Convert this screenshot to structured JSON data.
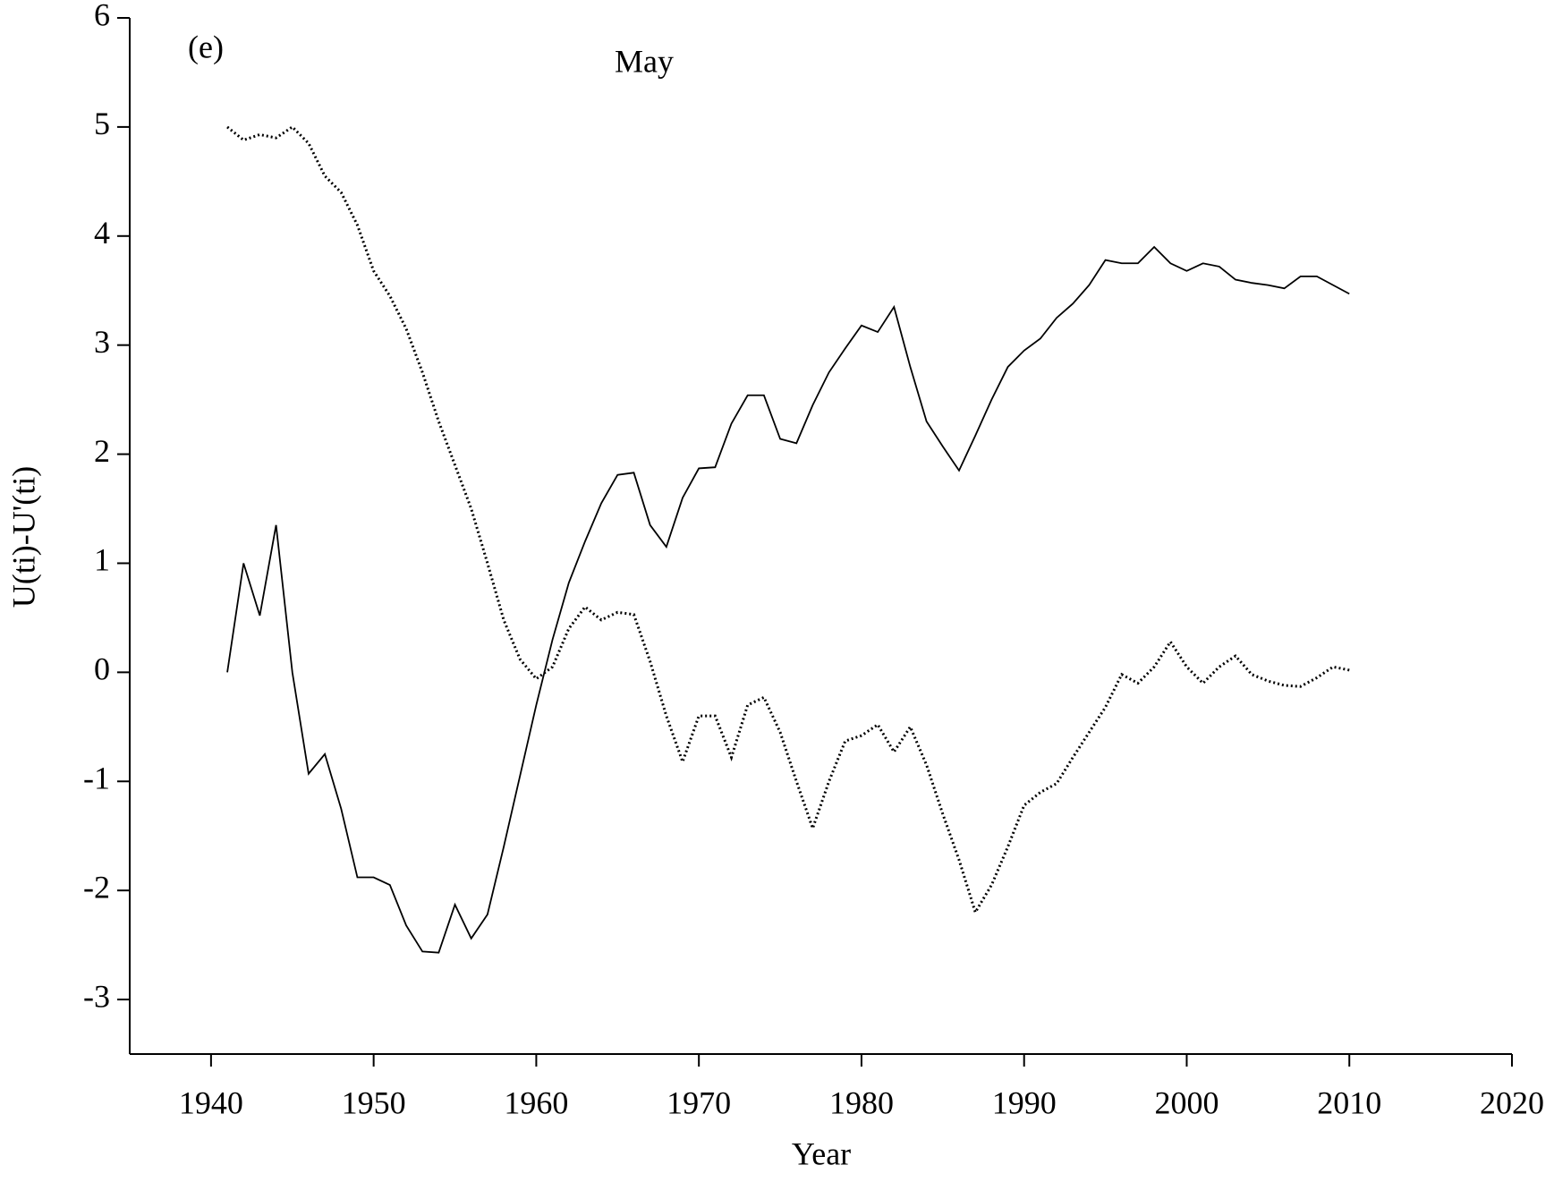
{
  "chart_data": {
    "type": "line",
    "title": "May",
    "annotation": "(e)",
    "x_label": "Year",
    "y_label": "U(ti)-U'(ti)",
    "x": [
      1941,
      1942,
      1943,
      1944,
      1945,
      1946,
      1947,
      1948,
      1949,
      1950,
      1951,
      1952,
      1953,
      1954,
      1955,
      1956,
      1957,
      1958,
      1959,
      1960,
      1961,
      1962,
      1963,
      1964,
      1965,
      1966,
      1967,
      1968,
      1969,
      1970,
      1971,
      1972,
      1973,
      1974,
      1975,
      1976,
      1977,
      1978,
      1979,
      1980,
      1981,
      1982,
      1983,
      1984,
      1985,
      1986,
      1987,
      1988,
      1989,
      1990,
      1991,
      1992,
      1993,
      1994,
      1995,
      1996,
      1997,
      1998,
      1999,
      2000,
      2001,
      2002,
      2003,
      2004,
      2005,
      2006,
      2007,
      2008,
      2009,
      2010
    ],
    "series": [
      {
        "color": "#000000",
        "dash": "solid",
        "values": [
          0,
          1.0,
          0.52,
          1.35,
          0,
          -0.93,
          -0.75,
          -1.25,
          -1.88,
          -1.88,
          -1.95,
          -2.32,
          -2.56,
          -2.57,
          -2.13,
          -2.44,
          -2.22,
          -1.6,
          -0.95,
          -0.3,
          0.3,
          0.82,
          1.2,
          1.55,
          1.81,
          1.83,
          1.35,
          1.15,
          1.6,
          1.87,
          1.88,
          2.28,
          2.54,
          2.54,
          2.14,
          2.1,
          2.45,
          2.75,
          2.97,
          3.18,
          3.12,
          3.35,
          2.8,
          2.3,
          2.07,
          1.85,
          2.17,
          2.5,
          2.8,
          2.95,
          3.06,
          3.25,
          3.38,
          3.55,
          3.78,
          3.75,
          3.75,
          3.9,
          3.75,
          3.68,
          3.75,
          3.72,
          3.6,
          3.57,
          3.55,
          3.52,
          3.63,
          3.63,
          3.55,
          3.47
        ]
      },
      {
        "color": "#000000",
        "dash": "dotted",
        "values": [
          5.0,
          4.88,
          4.93,
          4.9,
          5.0,
          4.85,
          4.55,
          4.4,
          4.1,
          3.68,
          3.45,
          3.15,
          2.75,
          2.3,
          1.9,
          1.5,
          1.0,
          0.48,
          0.12,
          -0.06,
          0.05,
          0.4,
          0.6,
          0.48,
          0.55,
          0.53,
          0.1,
          -0.4,
          -0.82,
          -0.4,
          -0.4,
          -0.78,
          -0.3,
          -0.23,
          -0.55,
          -1.0,
          -1.43,
          -1.0,
          -0.63,
          -0.58,
          -0.48,
          -0.73,
          -0.5,
          -0.85,
          -1.3,
          -1.72,
          -2.2,
          -1.95,
          -1.6,
          -1.22,
          -1.1,
          -1.02,
          -0.78,
          -0.55,
          -0.32,
          -0.02,
          -0.1,
          0.05,
          0.28,
          0.05,
          -0.1,
          0.05,
          0.15,
          -0.02,
          -0.08,
          -0.12,
          -0.13,
          -0.05,
          0.05,
          0.02
        ]
      }
    ],
    "xlim": [
      1935,
      2020
    ],
    "xticks": [
      1940,
      1950,
      1960,
      1970,
      1980,
      1990,
      2000,
      2010,
      2020
    ],
    "ylim": [
      -3.5,
      6
    ],
    "yticks": [
      -3,
      -2,
      -1,
      0,
      1,
      2,
      3,
      4,
      5,
      6
    ],
    "grid": false
  }
}
